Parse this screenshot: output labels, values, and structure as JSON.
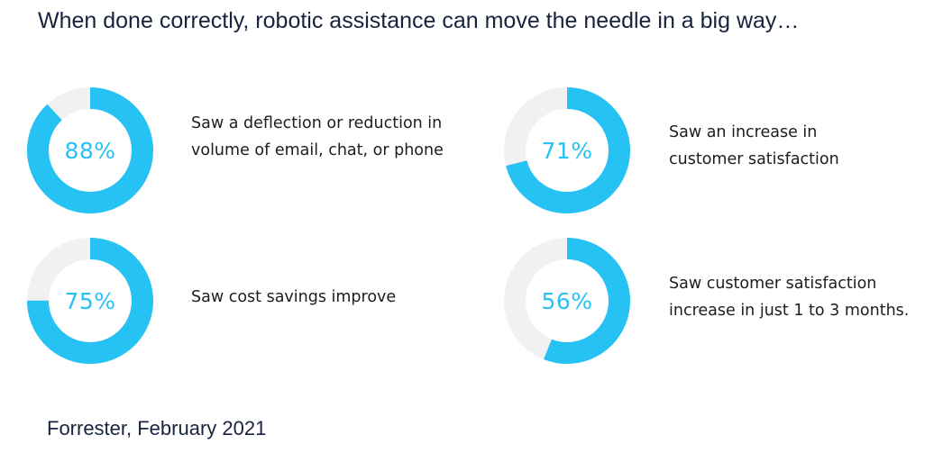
{
  "title": "When done correctly, robotic assistance can move the needle in a big way…",
  "source": "Forrester, February 2021",
  "colors": {
    "arc": "#27c2f4",
    "track": "#f1f1f1",
    "text": "#17233f",
    "percent": "#27c2f4"
  },
  "chart_data": {
    "type": "pie",
    "items": [
      {
        "value": 88,
        "percent_label": "88%",
        "lines": [
          "Saw a deflection or reduction in",
          "volume of email, chat, or phone"
        ]
      },
      {
        "value": 71,
        "percent_label": "71%",
        "lines": [
          "Saw an increase in",
          "customer satisfaction"
        ]
      },
      {
        "value": 75,
        "percent_label": "75%",
        "lines": [
          "Saw cost savings improve"
        ]
      },
      {
        "value": 56,
        "percent_label": "56%",
        "lines": [
          "Saw customer satisfaction",
          "increase in just 1 to 3 months."
        ]
      }
    ]
  }
}
